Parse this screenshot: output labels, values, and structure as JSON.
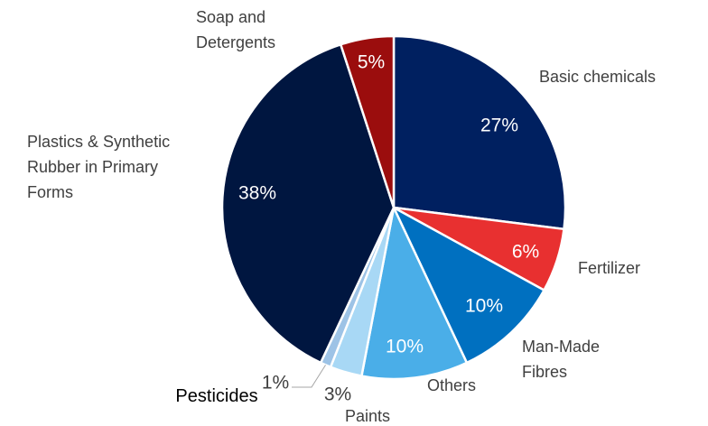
{
  "chart_data": {
    "type": "pie",
    "categories": [
      "Basic chemicals",
      "Fertilizer",
      "Man-Made\nFibres",
      "Others",
      "Paints",
      "Pesticides",
      "Plastics & Synthetic\nRubber in Primary\nForms",
      "Soap and\nDetergents"
    ],
    "values": [
      27,
      6,
      10,
      10,
      3,
      1,
      38,
      5
    ],
    "value_labels": [
      "27%",
      "6%",
      "10%",
      "10%",
      "3%",
      "1%",
      "38%",
      "5%"
    ],
    "colors": [
      "#002060",
      "#e83030",
      "#0070c0",
      "#4aaee8",
      "#a8d8f5",
      "#9dc3e6",
      "#001640",
      "#9b0d0d"
    ]
  }
}
